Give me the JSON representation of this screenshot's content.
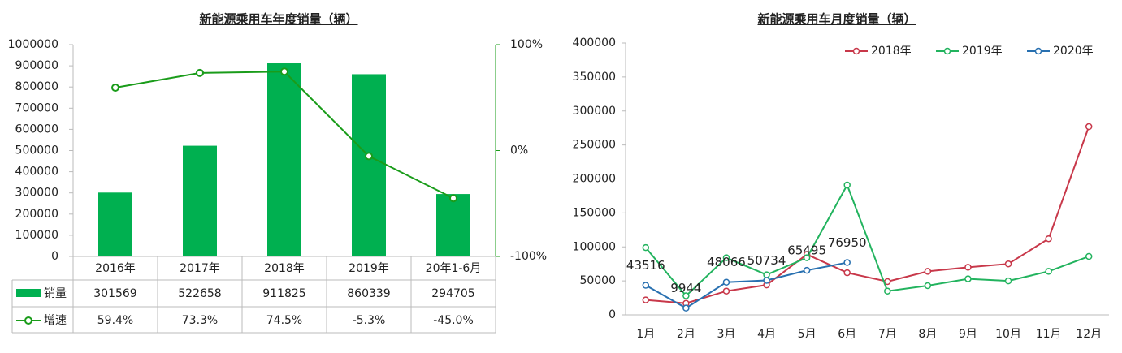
{
  "chart_data": [
    {
      "type": "bar",
      "title": "新能源乘用车年度销量（辆）",
      "categories": [
        "2016年",
        "2017年",
        "2018年",
        "2019年",
        "20年1-6月"
      ],
      "series": [
        {
          "name": "销量",
          "color": "#00b050",
          "values": [
            301569,
            522658,
            911825,
            860339,
            294705
          ]
        },
        {
          "name": "增速",
          "color": "#1a9c1a",
          "axis": "y2",
          "values": [
            59.4,
            73.3,
            74.5,
            -5.3,
            -45.0
          ],
          "value_labels": [
            "59.4%",
            "73.3%",
            "74.5%",
            "-5.3%",
            "-45.0%"
          ]
        }
      ],
      "ylim": [
        0,
        1000000
      ],
      "yticks": [
        0,
        100000,
        200000,
        300000,
        400000,
        500000,
        600000,
        700000,
        800000,
        900000,
        1000000
      ],
      "y2lim": [
        -100,
        100
      ],
      "y2ticks": [
        {
          "value": 100,
          "label": "100%"
        },
        {
          "value": 0,
          "label": "0%"
        },
        {
          "value": -100,
          "label": "-100%"
        }
      ],
      "grid": false
    },
    {
      "type": "line",
      "title": "新能源乘用车月度销量（辆）",
      "categories": [
        "1月",
        "2月",
        "3月",
        "4月",
        "5月",
        "6月",
        "7月",
        "8月",
        "9月",
        "10月",
        "11月",
        "12月"
      ],
      "series": [
        {
          "name": "2018年",
          "color": "#c8384a",
          "values": [
            22000,
            17000,
            35000,
            44000,
            89000,
            62000,
            49000,
            64000,
            70000,
            75000,
            112000,
            277000
          ]
        },
        {
          "name": "2019年",
          "color": "#22b35e",
          "values": [
            99000,
            28000,
            84000,
            59000,
            84000,
            191000,
            35000,
            43000,
            53000,
            50000,
            64000,
            86000
          ]
        },
        {
          "name": "2020年",
          "color": "#2870b0",
          "values": [
            43516,
            9944,
            48066,
            50734,
            65495,
            76950,
            null,
            null,
            null,
            null,
            null,
            null
          ],
          "show_labels": true
        }
      ],
      "ylim": [
        0,
        400000
      ],
      "yticks": [
        0,
        50000,
        100000,
        150000,
        200000,
        250000,
        300000,
        350000,
        400000
      ],
      "grid": false,
      "legend": "top"
    }
  ]
}
